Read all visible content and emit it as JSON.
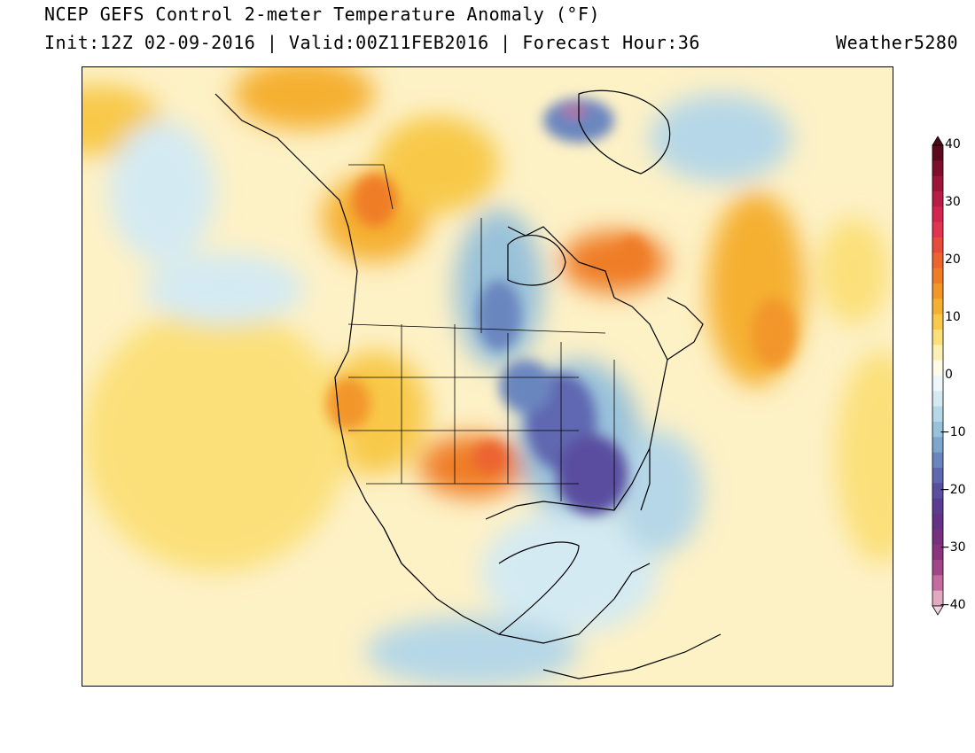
{
  "header": {
    "title": "NCEP GEFS Control 2-meter Temperature Anomaly (°F)",
    "subtitle": "Init:12Z 02-09-2016 | Valid:00Z11FEB2016 | Forecast Hour:36",
    "credit": "Weather5280"
  },
  "colorbar": {
    "unit": "°F",
    "labels": [
      "40",
      "30",
      "20",
      "10",
      "0",
      "−10",
      "−20",
      "−30",
      "−40"
    ],
    "colors": [
      "#5b0a1e",
      "#7d0f2c",
      "#9c1638",
      "#b81d46",
      "#d3264f",
      "#e23450",
      "#e84a3c",
      "#ec6430",
      "#ef7d26",
      "#f2962a",
      "#f5b032",
      "#f8c94a",
      "#fbe07a",
      "#fdf0b4",
      "#fefbe6",
      "#eef7fb",
      "#d4eaf2",
      "#b6d7e7",
      "#98c1da",
      "#7ea6cc",
      "#6b86bf",
      "#5e68b0",
      "#5a4ea0",
      "#5b3c90",
      "#643184",
      "#75307e",
      "#8a347f",
      "#a44488",
      "#c46c9e",
      "#e3a9c2"
    ],
    "top_cap_color": "#4a0818",
    "bottom_cap_color": "#f3d1dd"
  },
  "map": {
    "region": "North America",
    "background_color": "#fdf1c6",
    "land_outline_color": "#000000"
  }
}
